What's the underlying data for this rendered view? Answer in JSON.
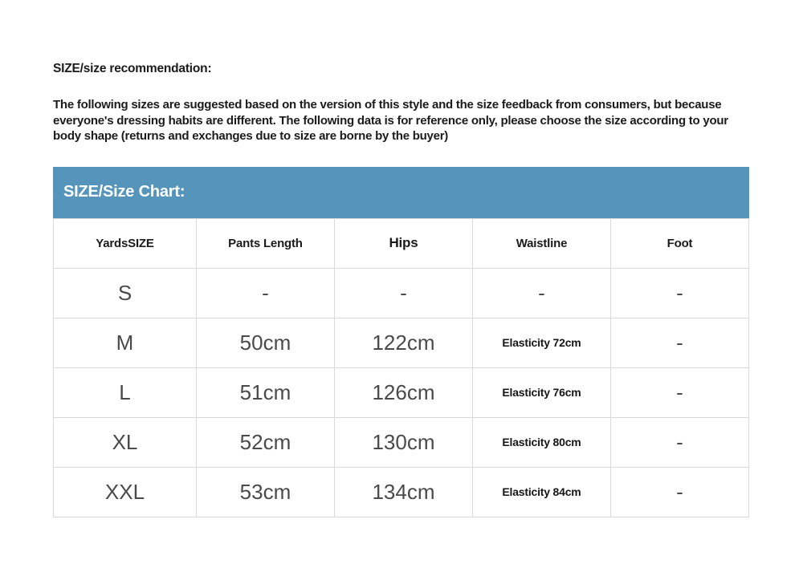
{
  "intro": {
    "heading": "SIZE/size recommendation:",
    "body": "The following sizes are suggested based on the version of this style and the size feedback from consumers, but because everyone's dressing habits are different. The following data is for reference only, please choose the size according to your body shape (returns and exchanges due to size are borne by the buyer)"
  },
  "size_chart": {
    "title": "SIZE/Size Chart:",
    "accent_color": "#5594bb",
    "border_color": "#d9d9d9",
    "columns": [
      "YardsSIZE",
      "Pants Length",
      "Hips",
      "Waistline",
      "Foot"
    ],
    "rows": [
      {
        "size": "S",
        "pants_length": "-",
        "hips": "-",
        "waistline": "-",
        "foot": "-"
      },
      {
        "size": "M",
        "pants_length": "50cm",
        "hips": "122cm",
        "waistline": "Elasticity 72cm",
        "foot": "-"
      },
      {
        "size": "L",
        "pants_length": "51cm",
        "hips": "126cm",
        "waistline": "Elasticity 76cm",
        "foot": "-"
      },
      {
        "size": "XL",
        "pants_length": "52cm",
        "hips": "130cm",
        "waistline": "Elasticity 80cm",
        "foot": "-"
      },
      {
        "size": "XXL",
        "pants_length": "53cm",
        "hips": "134cm",
        "waistline": "Elasticity 84cm",
        "foot": "-"
      }
    ]
  }
}
